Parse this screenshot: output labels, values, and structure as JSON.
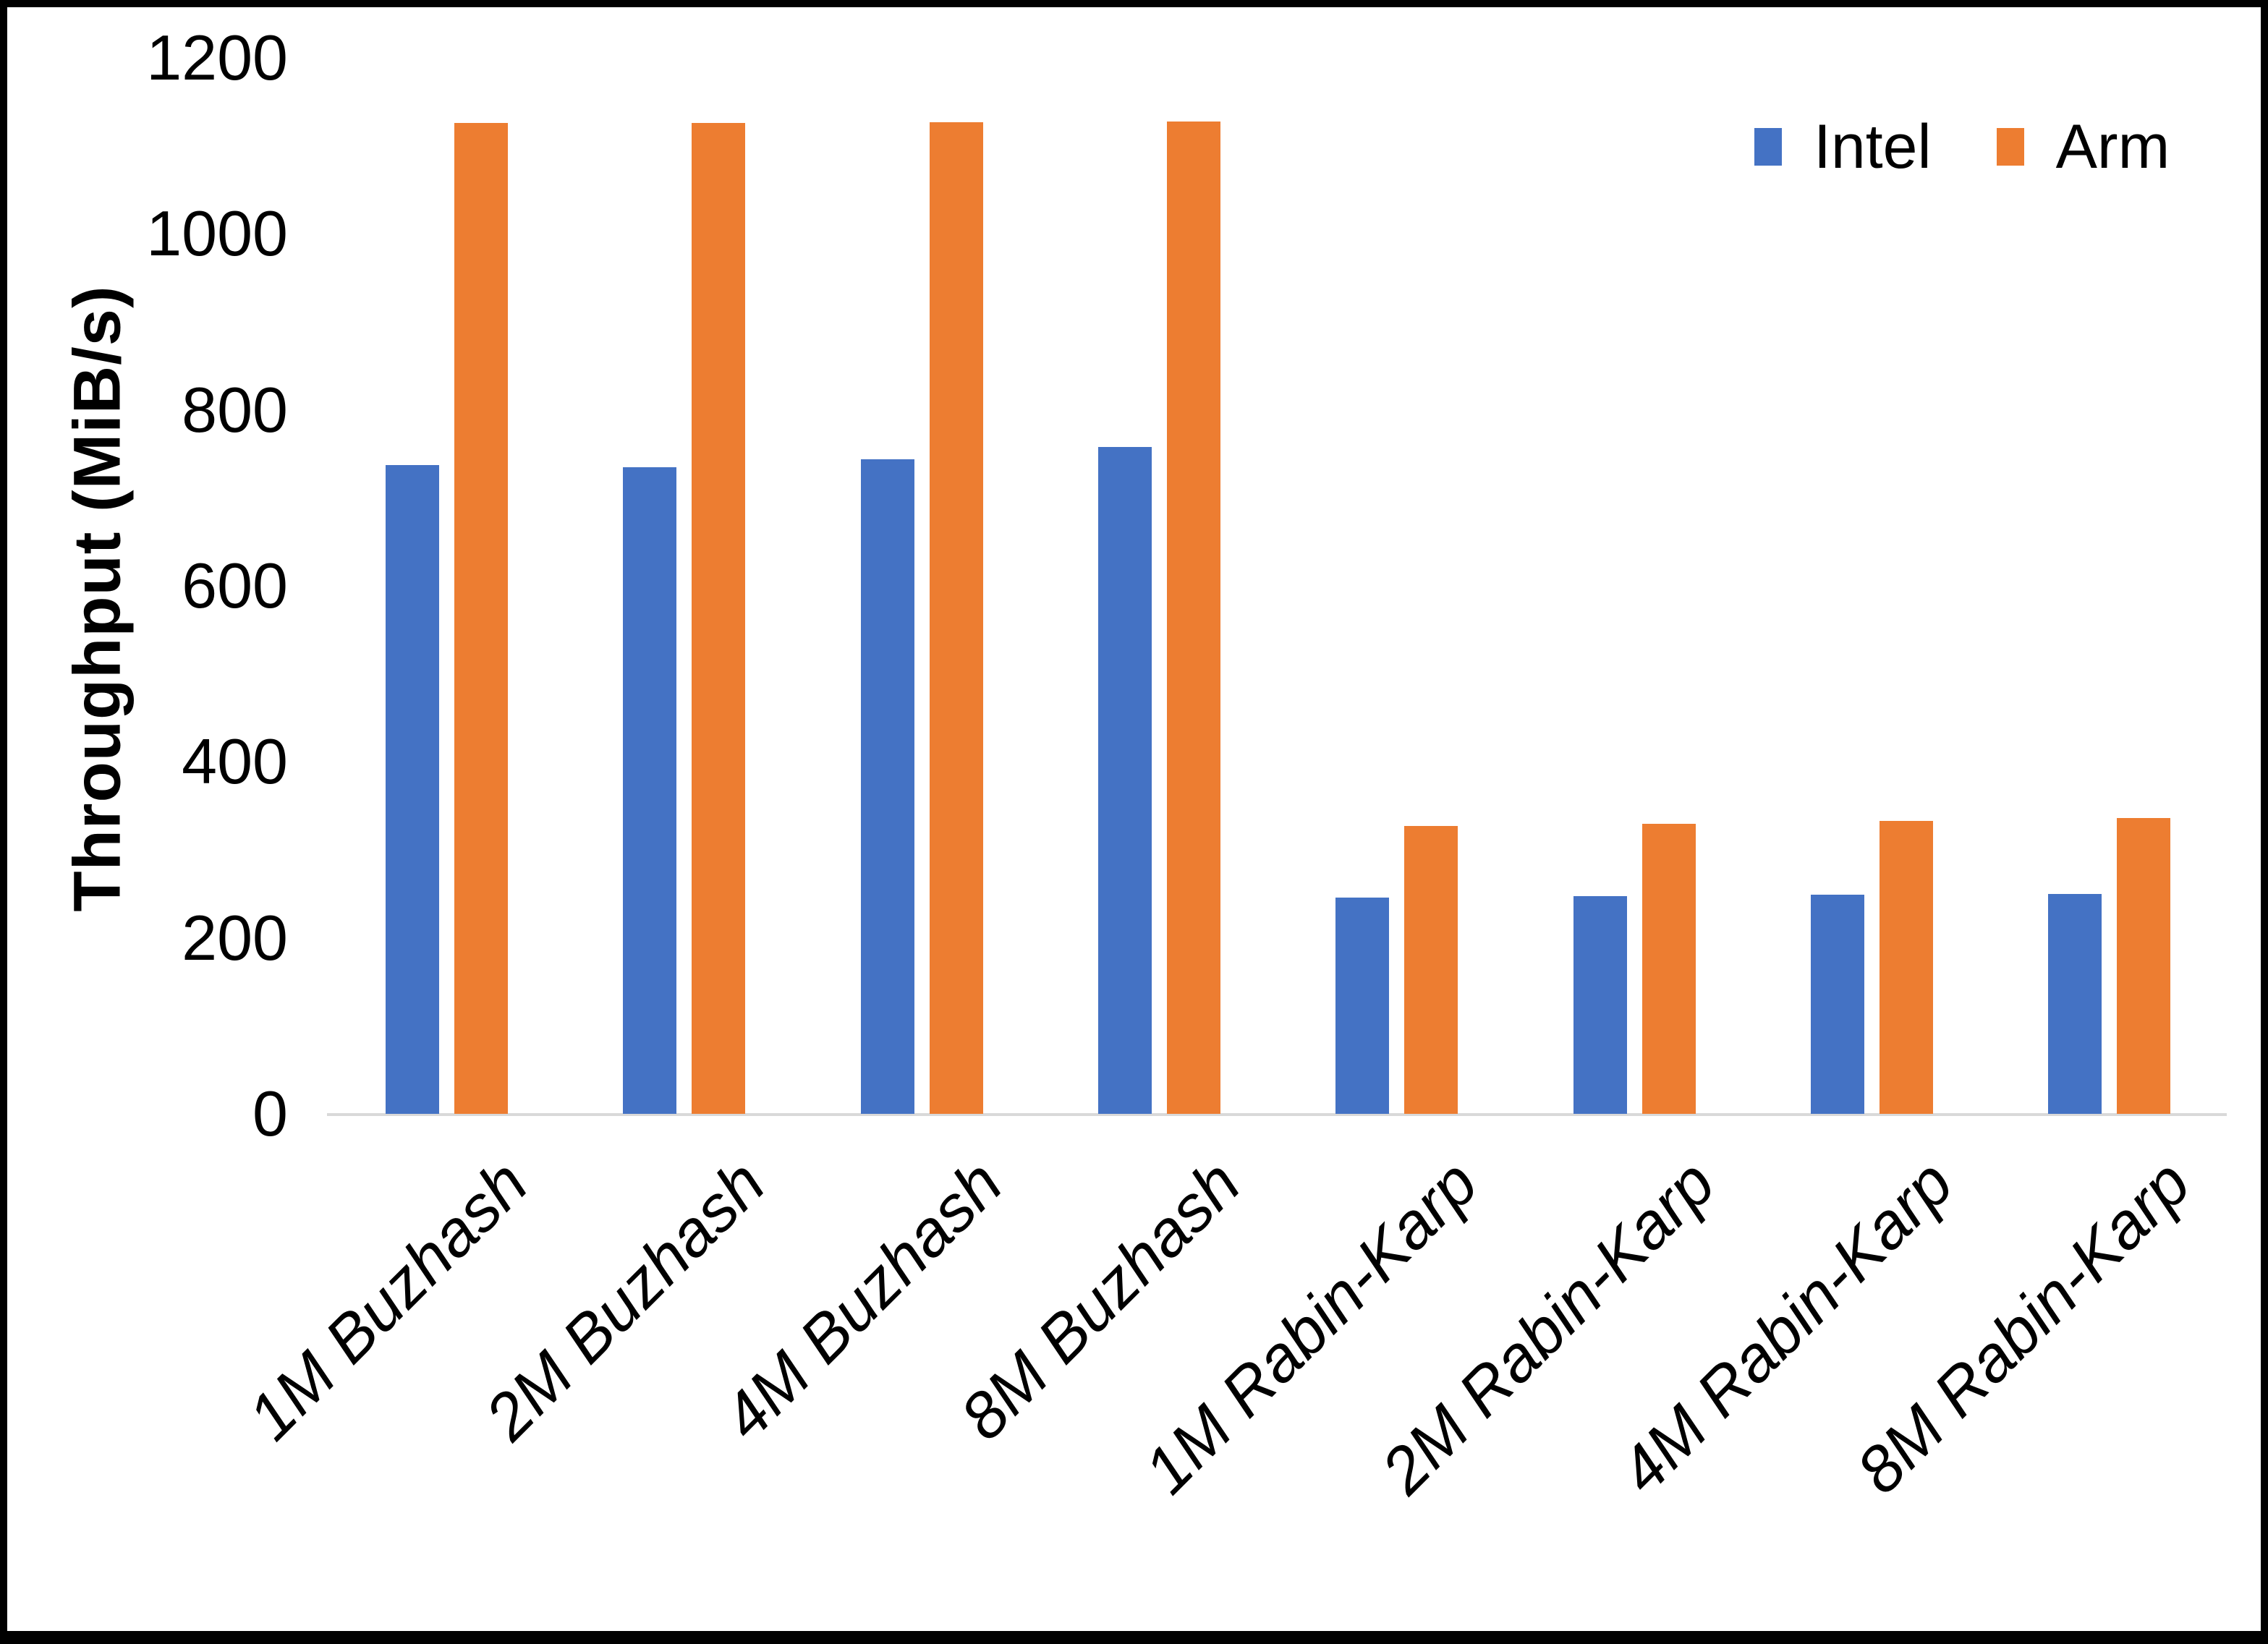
{
  "chart_data": {
    "type": "bar",
    "title": "",
    "xlabel": "",
    "ylabel": "Throughput (MiB/s)",
    "categories": [
      "1M Buzhash",
      "2M Buzhash",
      "4M Buzhash",
      "8M Buzhash",
      "1M Rabin-Karp",
      "2M Rabin-Karp",
      "4M Rabin-Karp",
      "8M Rabin-Karp"
    ],
    "series": [
      {
        "name": "Intel",
        "color": "#4472C4",
        "values": [
          737,
          735,
          744,
          758,
          246,
          247,
          249,
          250
        ]
      },
      {
        "name": "Arm",
        "color": "#ED7D31",
        "values": [
          1126,
          1126,
          1127,
          1128,
          327,
          330,
          333,
          336
        ]
      }
    ],
    "ylim": [
      0,
      1200
    ],
    "y_ticks": [
      0,
      200,
      400,
      600,
      800,
      1000,
      1200
    ],
    "grid": "off",
    "legend_position": "top-right",
    "axis_line_color": "#d9d9d9",
    "x_label_style": "italic, rotated 45deg"
  },
  "legend": {
    "items": [
      {
        "label": "Intel",
        "swatch_icon": "intel-series-swatch-icon",
        "color": "#4472C4"
      },
      {
        "label": "Arm",
        "swatch_icon": "arm-series-swatch-icon",
        "color": "#ED7D31"
      }
    ]
  },
  "y_axis": {
    "title": "Throughput (MiB/s)",
    "tick_labels": [
      "1200",
      "1000",
      "800",
      "600",
      "400",
      "200",
      "0"
    ]
  }
}
